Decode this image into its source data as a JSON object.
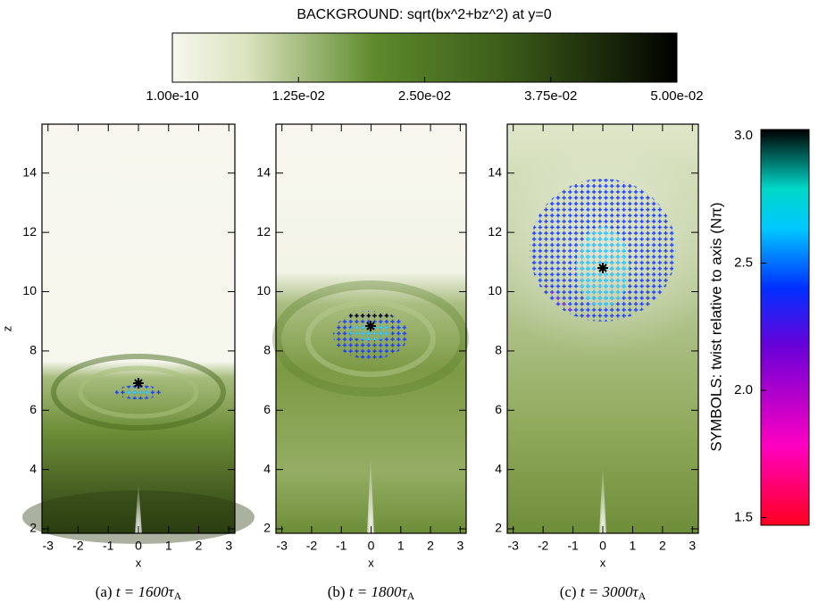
{
  "colorbar": {
    "title": "BACKGROUND: sqrt(bx^2+bz^2) at y=0",
    "lim": [
      1e-10,
      0.05
    ],
    "ticks": [
      {
        "value": 1e-10,
        "label": "1.00e-10"
      },
      {
        "value": 0.0125,
        "label": "1.25e-02"
      },
      {
        "value": 0.025,
        "label": "2.50e-02"
      },
      {
        "value": 0.0375,
        "label": "3.75e-02"
      },
      {
        "value": 0.05,
        "label": "5.00e-02"
      }
    ]
  },
  "symbol_colorbar": {
    "label": "SYMBOLS: twist relative to axis (Nπ)",
    "ylim": [
      1.47,
      3.025
    ],
    "yticks": [
      {
        "value": 1.5,
        "label": "1.5"
      },
      {
        "value": 2.0,
        "label": "2.0"
      },
      2.5,
      {
        "value": 3.0,
        "label": "3.0"
      }
    ]
  },
  "chart_data": [
    {
      "type": "heatmap",
      "xlabel": "x",
      "ylabel": "z",
      "xlim": [
        -3.2,
        3.2
      ],
      "ylim": [
        1.85,
        15.65
      ],
      "xticks": [
        -3,
        -2,
        -1,
        0,
        1,
        2,
        3
      ],
      "yticks": [
        2,
        4,
        6,
        8,
        10,
        12,
        14
      ],
      "caption": {
        "label": "(a)",
        "time": "t = 1600τ",
        "subscript": "A"
      }
    },
    {
      "type": "heatmap",
      "xlabel": "x",
      "xlim": [
        -3.2,
        3.2
      ],
      "ylim": [
        1.85,
        15.65
      ],
      "xticks": [
        -3,
        -2,
        -1,
        0,
        1,
        2,
        3
      ],
      "yticks": [
        2,
        4,
        6,
        8,
        10,
        12,
        14
      ],
      "caption": {
        "label": "(b)",
        "time": "t = 1800τ",
        "subscript": "A"
      }
    },
    {
      "type": "heatmap",
      "xlabel": "x",
      "xlim": [
        -3.2,
        3.2
      ],
      "ylim": [
        1.85,
        15.65
      ],
      "xticks": [
        -3,
        -2,
        -1,
        0,
        1,
        2,
        3
      ],
      "yticks": [
        2,
        4,
        6,
        8,
        10,
        12,
        14
      ],
      "caption": {
        "label": "(c)",
        "time": "t = 3000τ",
        "subscript": "A"
      }
    }
  ]
}
